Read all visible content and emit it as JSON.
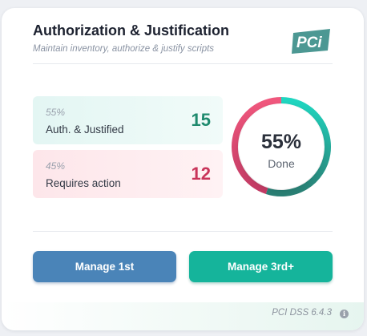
{
  "card": {
    "title": "Authorization & Justification",
    "subtitle": "Maintain inventory, authorize & justify scripts",
    "logo_text": "PCi",
    "logo_icon": "pci-logo-icon"
  },
  "stats": [
    {
      "percent": "55%",
      "label": "Auth. & Justified",
      "count": "15",
      "color": "#1f8a6e"
    },
    {
      "percent": "45%",
      "label": "Requires action",
      "count": "12",
      "color": "#c9345a"
    }
  ],
  "donut": {
    "value_text": "55%",
    "label": "Done",
    "fraction_done": 0.55,
    "done_colors": [
      "#1fd6c0",
      "#2a7f74"
    ],
    "action_colors": [
      "#f0577d",
      "#c23b64"
    ]
  },
  "buttons": {
    "manage_1st": "Manage 1st",
    "manage_3rd": "Manage 3rd+"
  },
  "footer": {
    "version_text": "PCI DSS 6.4.3",
    "info_icon": "info-icon"
  },
  "colors": {
    "primary_blue": "#4a84b8",
    "primary_teal": "#15b49b"
  }
}
